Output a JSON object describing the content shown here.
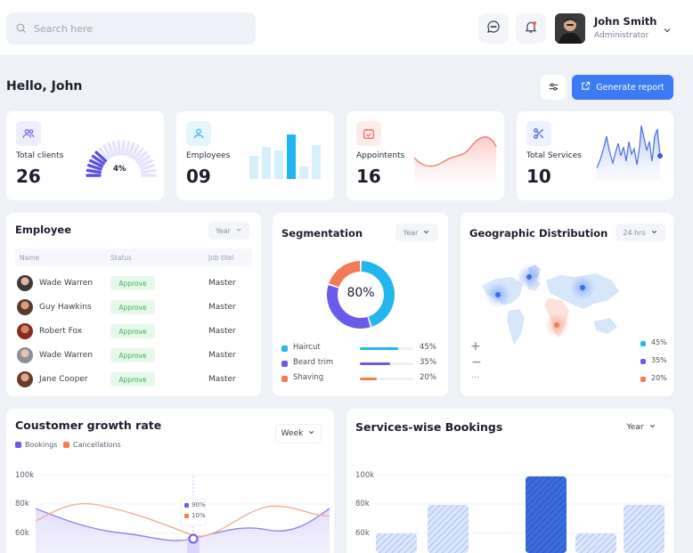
{
  "header": {
    "search_placeholder": "Search here",
    "user_name": "John Smith",
    "user_role": "Administrator"
  },
  "greeting": "Hello, John",
  "generate_report_label": "Generate report",
  "stats": [
    {
      "label": "Total clients",
      "value": "26",
      "gauge_percent": "4%"
    },
    {
      "label": "Employees",
      "value": "09"
    },
    {
      "label": "Appointents",
      "value": "16"
    },
    {
      "label": "Total Services",
      "value": "10"
    }
  ],
  "employee_card": {
    "title": "Employee",
    "filter": "Year",
    "headers": [
      "Name",
      "Status",
      "Job titel"
    ],
    "rows": [
      {
        "name": "Wade Warren",
        "status": "Approve",
        "job": "Master"
      },
      {
        "name": "Guy Hawkins",
        "status": "Approve",
        "job": "Master"
      },
      {
        "name": "Robert Fox",
        "status": "Approve",
        "job": "Master"
      },
      {
        "name": "Wade Warren",
        "status": "Approve",
        "job": "Master"
      },
      {
        "name": "Jane Cooper",
        "status": "Approve",
        "job": "Master"
      }
    ]
  },
  "segmentation": {
    "title": "Segmentation",
    "filter": "Year",
    "center_label": "80%",
    "items": [
      {
        "name": "Haircut",
        "percent": "45%",
        "value": 45,
        "color": "#22b6ee"
      },
      {
        "name": "Beard trim",
        "percent": "35%",
        "value": 35,
        "color": "#6b5bea"
      },
      {
        "name": "Shaving",
        "percent": "20%",
        "value": 20,
        "color": "#f47b56"
      }
    ]
  },
  "geo": {
    "title": "Geographic Distribution",
    "filter": "24 hrs",
    "zoom_in": "+",
    "zoom_out": "−",
    "more": "···",
    "legend": [
      {
        "label": "45%",
        "color": "#22b6ee"
      },
      {
        "label": "35%",
        "color": "#6b5bea"
      },
      {
        "label": "20%",
        "color": "#f47b56"
      }
    ]
  },
  "growth": {
    "title": "Coustomer growth rate",
    "filter": "Week",
    "legend": [
      {
        "label": "Bookings",
        "color": "#6b5bea"
      },
      {
        "label": "Cancellations",
        "color": "#f47b56"
      }
    ],
    "y_ticks": [
      "100k",
      "80k",
      "60k"
    ],
    "tooltip": [
      {
        "label": "90%",
        "color": "#6b5bea"
      },
      {
        "label": "10%",
        "color": "#f47b56"
      }
    ]
  },
  "services": {
    "title": "Services-wise Bookings",
    "filter": "Year",
    "y_ticks": [
      "100k",
      "80k",
      "60k"
    ]
  },
  "colors": {
    "accent": "#3a7bf5",
    "purple": "#6b5bea",
    "cyan": "#22b6ee",
    "orange": "#f47b56",
    "approve_bg": "#e6f8ea",
    "approve_text": "#3cb55a"
  }
}
